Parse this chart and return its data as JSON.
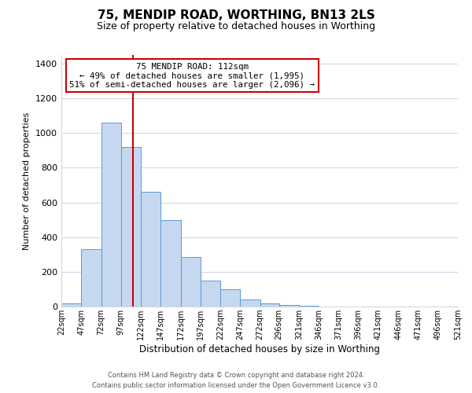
{
  "title": "75, MENDIP ROAD, WORTHING, BN13 2LS",
  "subtitle": "Size of property relative to detached houses in Worthing",
  "xlabel": "Distribution of detached houses by size in Worthing",
  "ylabel": "Number of detached properties",
  "bar_values": [
    20,
    330,
    1060,
    920,
    660,
    500,
    285,
    150,
    100,
    40,
    20,
    10,
    5,
    2,
    1,
    1,
    0,
    0,
    0,
    0
  ],
  "bin_edges": [
    22,
    47,
    72,
    97,
    122,
    147,
    172,
    197,
    222,
    247,
    272,
    296,
    321,
    346,
    371,
    396,
    421,
    446,
    471,
    496,
    521
  ],
  "tick_labels": [
    "22sqm",
    "47sqm",
    "72sqm",
    "97sqm",
    "122sqm",
    "147sqm",
    "172sqm",
    "197sqm",
    "222sqm",
    "247sqm",
    "272sqm",
    "296sqm",
    "321sqm",
    "346sqm",
    "371sqm",
    "396sqm",
    "421sqm",
    "446sqm",
    "471sqm",
    "496sqm",
    "521sqm"
  ],
  "bar_color": "#c5d8ef",
  "bar_edge_color": "#5b9bd5",
  "vline_x": 112,
  "vline_color": "#cc0000",
  "annotation_title": "75 MENDIP ROAD: 112sqm",
  "annotation_line1": "← 49% of detached houses are smaller (1,995)",
  "annotation_line2": "51% of semi-detached houses are larger (2,096) →",
  "annotation_box_color": "#ffffff",
  "annotation_box_edge": "#cc0000",
  "ylim": [
    0,
    1450
  ],
  "yticks": [
    0,
    200,
    400,
    600,
    800,
    1000,
    1200,
    1400
  ],
  "footer_line1": "Contains HM Land Registry data © Crown copyright and database right 2024.",
  "footer_line2": "Contains public sector information licensed under the Open Government Licence v3.0.",
  "bg_color": "#ffffff",
  "grid_color": "#d0d8e8"
}
